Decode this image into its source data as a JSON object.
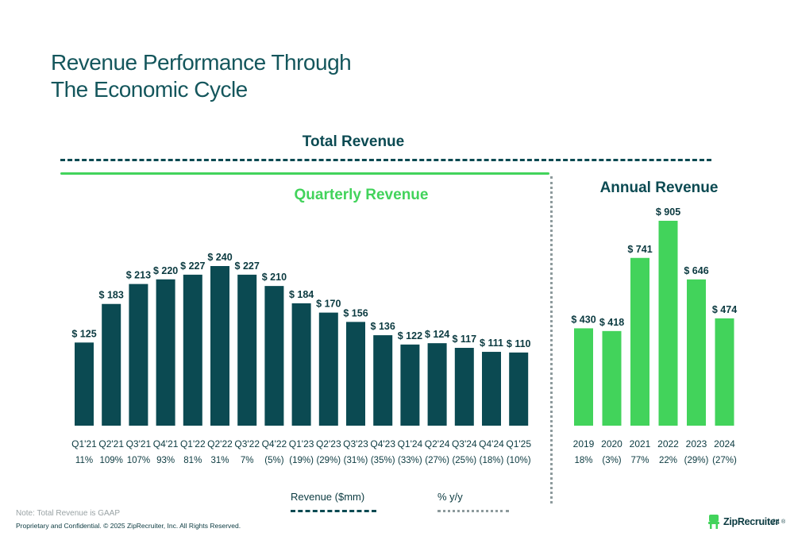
{
  "page": {
    "title_line1": "Revenue Performance Through",
    "title_line2": "The Economic Cycle",
    "section_title": "Total Revenue",
    "quarterly_title": "Quarterly Revenue",
    "annual_title": "Annual Revenue",
    "legend_revenue": "Revenue ($mm)",
    "legend_pct": "% y/y",
    "note": "Note: Total Revenue is GAAP",
    "footer": "Proprietary and Confidential. © 2025 ZipRecruiter, Inc. All Rights Reserved.",
    "logo_text": "ZipRecruiter",
    "logo_mark": "®",
    "page_number": "24"
  },
  "colors": {
    "quarterly_bar": "#0b4a52",
    "annual_bar": "#42d35b",
    "text_dark": "#0b3a40",
    "title": "#14565c"
  },
  "chart_data": [
    {
      "type": "bar",
      "title": "Quarterly Revenue",
      "ylabel": "Revenue ($mm)",
      "categories": [
        "Q1'21",
        "Q2'21",
        "Q3'21",
        "Q4'21",
        "Q1'22",
        "Q2'22",
        "Q3'22",
        "Q4'22",
        "Q1'23",
        "Q2'23",
        "Q3'23",
        "Q4'23",
        "Q1'24",
        "Q2'24",
        "Q3'24",
        "Q4'24",
        "Q1'25"
      ],
      "values": [
        125,
        183,
        213,
        220,
        227,
        240,
        227,
        210,
        184,
        170,
        156,
        136,
        122,
        124,
        117,
        111,
        110
      ],
      "value_labels": [
        "$ 125",
        "$ 183",
        "$ 213",
        "$ 220",
        "$ 227",
        "$ 240",
        "$ 227",
        "$ 210",
        "$ 184",
        "$ 170",
        "$ 156",
        "$ 136",
        "$ 122",
        "$ 124",
        "$ 117",
        "$ 111",
        "$ 110"
      ],
      "yoy_labels": [
        "11%",
        "109%",
        "107%",
        "93%",
        "81%",
        "31%",
        "7%",
        "(5%)",
        "(19%)",
        "(29%)",
        "(31%)",
        "(35%)",
        "(33%)",
        "(27%)",
        "(25%)",
        "(18%)",
        "(10%)"
      ],
      "ylim": [
        0,
        240
      ],
      "grid": false
    },
    {
      "type": "bar",
      "title": "Annual Revenue",
      "ylabel": "Revenue ($mm)",
      "categories": [
        "2019",
        "2020",
        "2021",
        "2022",
        "2023",
        "2024"
      ],
      "values": [
        430,
        418,
        741,
        905,
        646,
        474
      ],
      "value_labels": [
        "$ 430",
        "$ 418",
        "$ 741",
        "$ 905",
        "$ 646",
        "$ 474"
      ],
      "yoy_labels": [
        "18%",
        "(3%)",
        "77%",
        "22%",
        "(29%)",
        "(27%)"
      ],
      "ylim": [
        0,
        905
      ],
      "grid": false
    }
  ]
}
